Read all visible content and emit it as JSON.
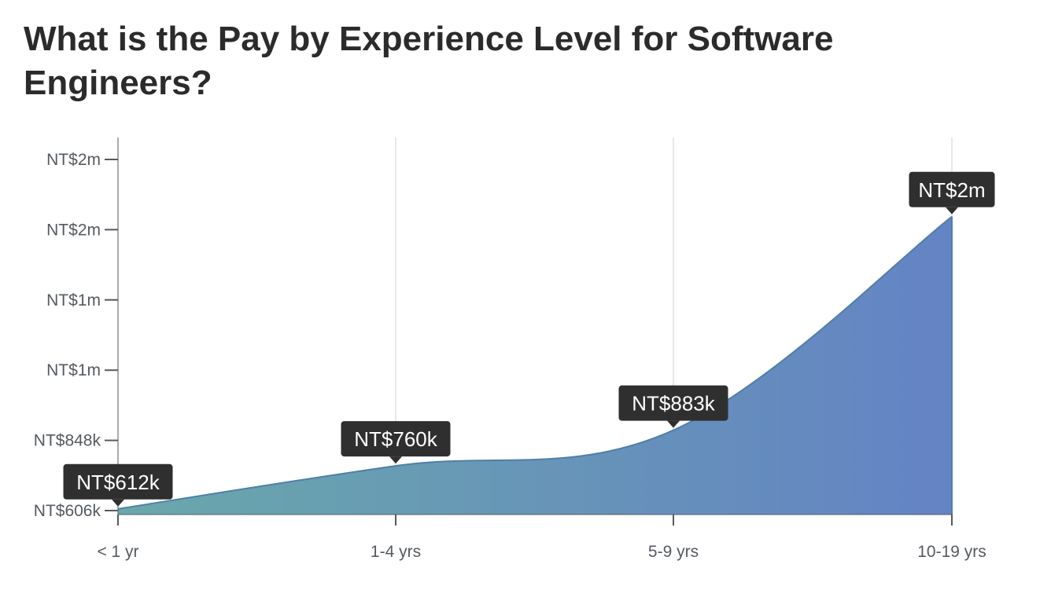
{
  "title": "What is the Pay by Experience Level for Software Engineers?",
  "chart_data": {
    "type": "area",
    "categories": [
      "< 1 yr",
      "1-4 yrs",
      "5-9 yrs",
      "10-19 yrs"
    ],
    "values": [
      612,
      760,
      883,
      1619
    ],
    "value_labels": [
      "NT$612k",
      "NT$760k",
      "NT$883k",
      "NT$2m"
    ],
    "value_unit": "NT$ thousands",
    "y_ticks": [
      {
        "value": 606,
        "label": "NT$606k"
      },
      {
        "value": 848,
        "label": "NT$848k"
      },
      {
        "value": 1090,
        "label": "NT$1m"
      },
      {
        "value": 1332,
        "label": "NT$1m"
      },
      {
        "value": 1574,
        "label": "NT$2m"
      },
      {
        "value": 1816,
        "label": "NT$2m"
      }
    ],
    "ylim": [
      606,
      1816
    ],
    "xlabel": "",
    "ylabel": "",
    "grid": true,
    "colors": {
      "fill_start": "#6aa8ab",
      "fill_end": "#6483c4",
      "line": "#4f7fa8",
      "bubble": "#2f2f2f",
      "grid": "#cfd2d6",
      "axis": "#555a60"
    }
  }
}
